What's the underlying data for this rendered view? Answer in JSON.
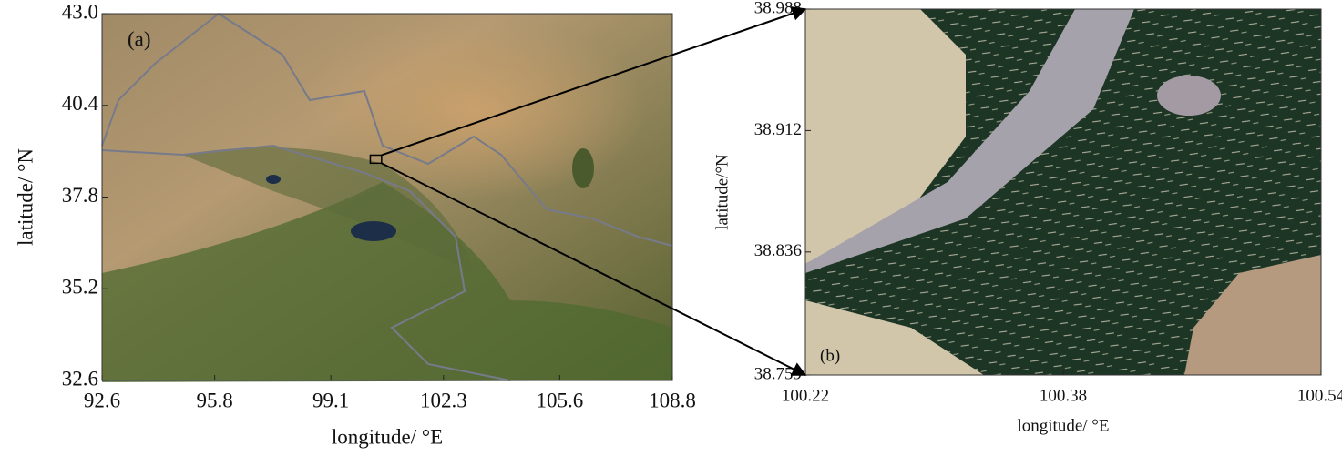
{
  "panels": [
    {
      "label": "(a)",
      "xlabel": "longitude/ °E",
      "ylabel": "latitude/ °N",
      "xlim": [
        92.6,
        108.8
      ],
      "ylim": [
        32.6,
        43.0
      ],
      "xticks": [
        92.6,
        95.8,
        99.1,
        102.3,
        105.6,
        108.8
      ],
      "yticks": [
        {
          "value": 43.0,
          "label": "43.0"
        },
        40.4,
        37.8,
        35.2,
        32.6
      ]
    },
    {
      "label": "(b)",
      "xlabel": "longitude/ °E",
      "ylabel": "latitude/°N",
      "xlim": [
        100.22,
        100.54
      ],
      "ylim": [
        38.759,
        38.988
      ],
      "xticks": [
        100.22,
        100.38,
        100.54
      ],
      "yticks": [
        38.988,
        38.912,
        38.836,
        38.759
      ]
    }
  ]
}
